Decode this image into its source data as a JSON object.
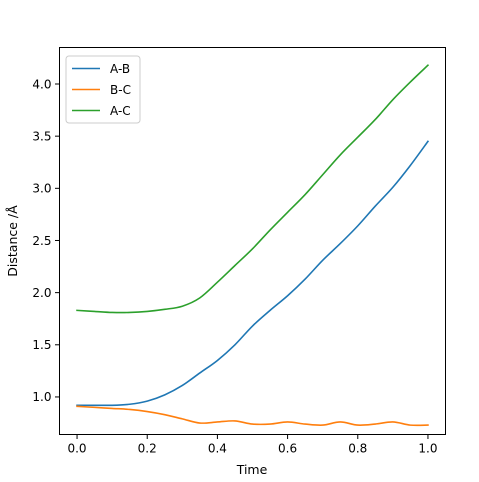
{
  "chart_data": {
    "type": "line",
    "title": "",
    "xlabel": "Time",
    "ylabel": "Distance /Å",
    "xlim": [
      -0.05,
      1.05
    ],
    "ylim": [
      0.64,
      4.35
    ],
    "xticks": [
      {
        "value": 0.0,
        "label": "0.0"
      },
      {
        "value": 0.2,
        "label": "0.2"
      },
      {
        "value": 0.4,
        "label": "0.4"
      },
      {
        "value": 0.6,
        "label": "0.6"
      },
      {
        "value": 0.8,
        "label": "0.8"
      },
      {
        "value": 1.0,
        "label": "1.0"
      }
    ],
    "yticks": [
      {
        "value": 1.0,
        "label": "1.0"
      },
      {
        "value": 1.5,
        "label": "1.5"
      },
      {
        "value": 2.0,
        "label": "2.0"
      },
      {
        "value": 2.5,
        "label": "2.5"
      },
      {
        "value": 3.0,
        "label": "3.0"
      },
      {
        "value": 3.5,
        "label": "3.5"
      },
      {
        "value": 4.0,
        "label": "4.0"
      }
    ],
    "grid": false,
    "legend_position": "top-left",
    "x": [
      0.0,
      0.05,
      0.1,
      0.15,
      0.2,
      0.25,
      0.3,
      0.35,
      0.4,
      0.45,
      0.5,
      0.55,
      0.6,
      0.65,
      0.7,
      0.75,
      0.8,
      0.85,
      0.9,
      0.95,
      1.0
    ],
    "series": [
      {
        "name": "A-B",
        "color": "#1f77b4",
        "values": [
          0.92,
          0.92,
          0.92,
          0.93,
          0.96,
          1.02,
          1.11,
          1.23,
          1.35,
          1.5,
          1.68,
          1.83,
          1.97,
          2.13,
          2.31,
          2.47,
          2.64,
          2.83,
          3.01,
          3.22,
          3.45
        ]
      },
      {
        "name": "B-C",
        "color": "#ff7f0e",
        "values": [
          0.91,
          0.9,
          0.89,
          0.88,
          0.86,
          0.83,
          0.79,
          0.75,
          0.76,
          0.77,
          0.74,
          0.74,
          0.76,
          0.74,
          0.73,
          0.76,
          0.73,
          0.74,
          0.76,
          0.73,
          0.73
        ]
      },
      {
        "name": "A-C",
        "color": "#2ca02c",
        "values": [
          1.83,
          1.82,
          1.81,
          1.81,
          1.82,
          1.84,
          1.87,
          1.95,
          2.1,
          2.26,
          2.42,
          2.6,
          2.77,
          2.94,
          3.13,
          3.32,
          3.49,
          3.66,
          3.85,
          4.02,
          4.18
        ]
      }
    ]
  }
}
